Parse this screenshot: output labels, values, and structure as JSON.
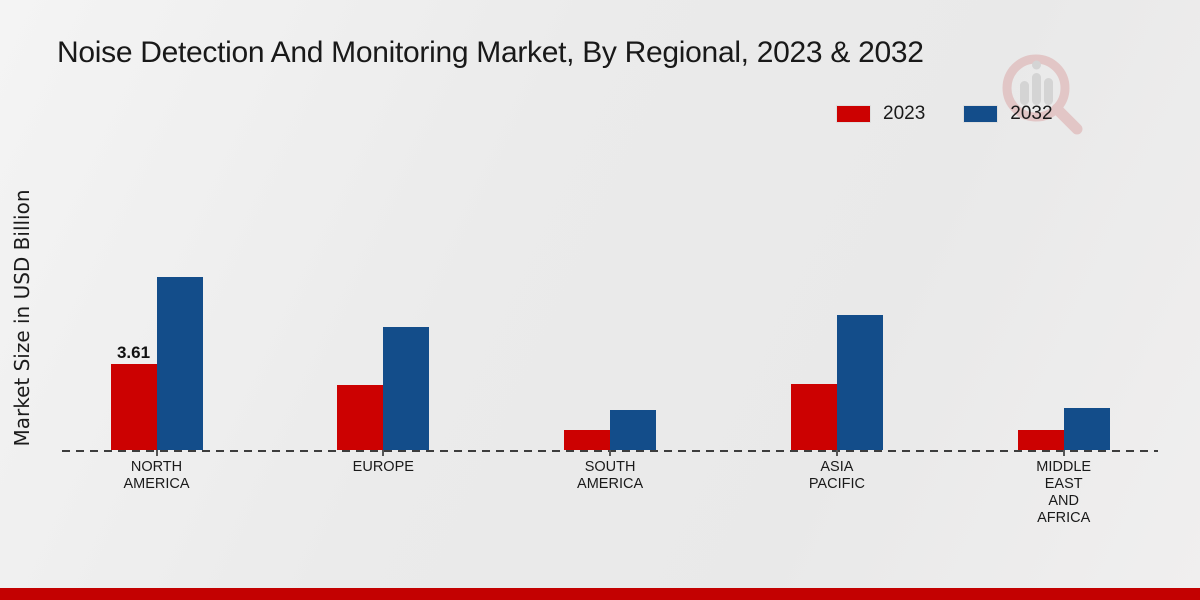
{
  "header": {
    "title": "Noise Detection And Monitoring Market, By Regional, 2023 & 2032"
  },
  "y_axis": {
    "label": "Market Size in USD Billion"
  },
  "legend": {
    "items": [
      {
        "label": "2023",
        "color": "#cc0101"
      },
      {
        "label": "2032",
        "color": "#134d8a"
      }
    ]
  },
  "watermark": {
    "name": "magnifier-bar-chart-logo"
  },
  "colors": {
    "bar_2023": "#cc0101",
    "bar_2032": "#134d8a",
    "footer_band": "#c30101",
    "background": "#ededed",
    "baseline": "#3d3d3d",
    "text": "#1a1a1a"
  },
  "chart_data": {
    "type": "bar",
    "title": "Noise Detection And Monitoring Market, By Regional, 2023 & 2032",
    "xlabel": "",
    "ylabel": "Market Size in USD Billion",
    "categories": [
      "NORTH AMERICA",
      "EUROPE",
      "SOUTH AMERICA",
      "ASIA PACIFIC",
      "MIDDLE EAST AND AFRICA"
    ],
    "category_label_lines": [
      [
        "NORTH",
        "AMERICA"
      ],
      [
        "EUROPE"
      ],
      [
        "SOUTH",
        "AMERICA"
      ],
      [
        "ASIA",
        "PACIFIC"
      ],
      [
        "MIDDLE",
        "EAST",
        "AND",
        "AFRICA"
      ]
    ],
    "series": [
      {
        "name": "2023",
        "color": "#cc0101",
        "values": [
          3.61,
          2.73,
          0.86,
          2.79,
          0.85
        ]
      },
      {
        "name": "2032",
        "color": "#134d8a",
        "values": [
          7.26,
          5.17,
          1.7,
          5.67,
          1.75
        ]
      }
    ],
    "bar_labels": [
      {
        "series": "2023",
        "category": "NORTH AMERICA",
        "text": "3.61"
      }
    ],
    "ylim": [
      0,
      8
    ],
    "grid": false,
    "legend_position": "top-right",
    "baseline_style": "dashed",
    "axis_ticks": "category-centers-only"
  }
}
